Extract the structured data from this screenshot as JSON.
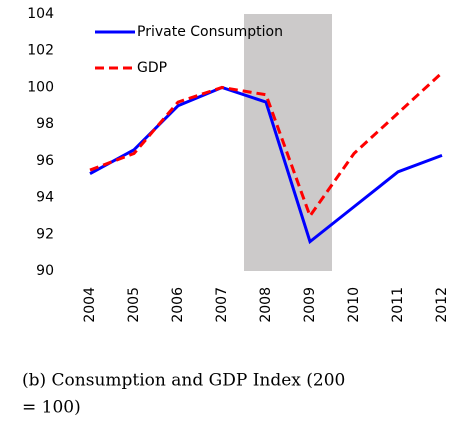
{
  "chart_data": {
    "type": "line",
    "categories": [
      "2004",
      "2005",
      "2006",
      "2007",
      "2008",
      "2009",
      "2010",
      "2011",
      "2012"
    ],
    "series": [
      {
        "name": "Private Consumption",
        "color": "#0000ff",
        "dash": "solid",
        "values": [
          95.3,
          96.6,
          99.0,
          100.0,
          99.2,
          91.6,
          93.5,
          95.4,
          96.3
        ]
      },
      {
        "name": "GDP",
        "color": "#ff0000",
        "dash": "dashed",
        "values": [
          95.5,
          96.4,
          99.2,
          100.0,
          99.6,
          93.0,
          96.4,
          98.6,
          100.8
        ]
      }
    ],
    "ylim": [
      90,
      104
    ],
    "yticks": [
      90,
      92,
      94,
      96,
      98,
      100,
      102,
      104
    ],
    "grid": false,
    "legend": "upper left",
    "shade": {
      "from": "2008",
      "to": "2009",
      "color": "#cccaca"
    },
    "caption": [
      "(b) Consumption and GDP Index (200",
      "= 100)"
    ]
  }
}
